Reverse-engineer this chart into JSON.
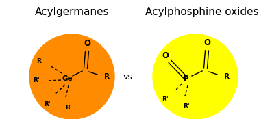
{
  "title_left": "Acylgermanes",
  "title_right": "Acylphosphine oxides",
  "vs_text": "vs.",
  "circle_left_color": "#FF8C00",
  "circle_right_color": "#FFFF00",
  "background_color": "#ffffff",
  "title_fontsize": 11,
  "vs_fontsize": 9,
  "struct_fontsize": 7.5
}
